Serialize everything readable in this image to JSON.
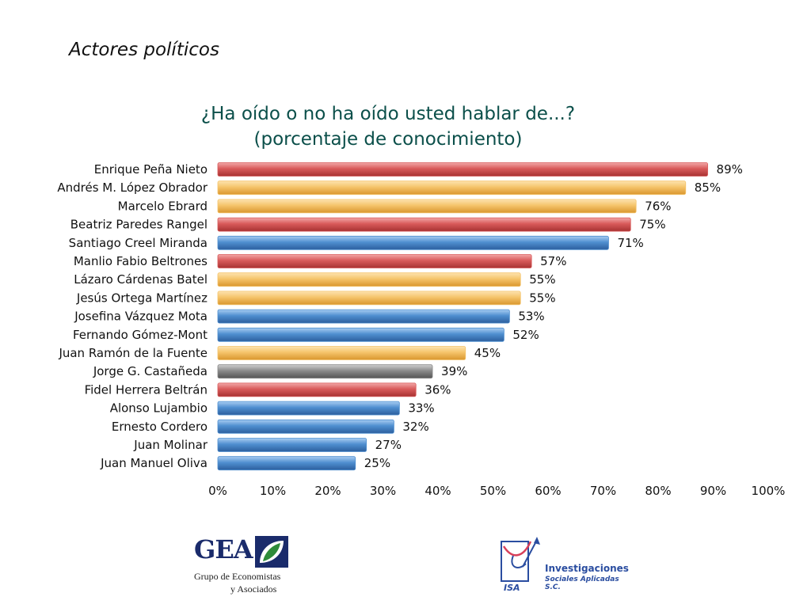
{
  "slide_title": "Actores políticos",
  "colors": {
    "pri": "#d85a5a",
    "prd": "#f5c46a",
    "pan": "#4f8fd0",
    "other": "#8a8a8a",
    "title": "#0b4f4a"
  },
  "chart_data": {
    "type": "bar",
    "orientation": "horizontal",
    "title": "¿Ha oído o no ha oído usted hablar de...?",
    "subtitle": "(porcentaje de conocimiento)",
    "categories": [
      "Enrique Peña Nieto",
      "Andrés M. López Obrador",
      "Marcelo Ebrard",
      "Beatriz Paredes Rangel",
      "Santiago Creel Miranda",
      "Manlio Fabio Beltrones",
      "Lázaro Cárdenas Batel",
      "Jesús Ortega Martínez",
      "Josefina Vázquez Mota",
      "Fernando Gómez-Mont",
      "Juan Ramón de la Fuente",
      "Jorge G. Castañeda",
      "Fidel Herrera Beltrán",
      "Alonso Lujambio",
      "Ernesto Cordero",
      "Juan Molinar",
      "Juan Manuel Oliva"
    ],
    "values": [
      89,
      85,
      76,
      75,
      71,
      57,
      55,
      55,
      53,
      52,
      45,
      39,
      36,
      33,
      32,
      27,
      25
    ],
    "value_labels": [
      "89%",
      "85%",
      "76%",
      "75%",
      "71%",
      "57%",
      "55%",
      "55%",
      "53%",
      "52%",
      "45%",
      "39%",
      "36%",
      "33%",
      "32%",
      "27%",
      "25%"
    ],
    "bar_colors": [
      "pri",
      "prd",
      "prd",
      "pri",
      "pan",
      "pri",
      "prd",
      "prd",
      "pan",
      "pan",
      "prd",
      "other",
      "pri",
      "pan",
      "pan",
      "pan",
      "pan"
    ],
    "xlim": [
      0,
      100
    ],
    "xticks": [
      "0%",
      "10%",
      "20%",
      "30%",
      "40%",
      "50%",
      "60%",
      "70%",
      "80%",
      "90%",
      "100%"
    ],
    "grid": false,
    "legend": "none"
  },
  "logos": {
    "gea": {
      "name": "GEA",
      "line1": "Grupo de Economistas",
      "line2": "y Asociados"
    },
    "isa": {
      "mark": "ISA",
      "line1": "Investigaciones",
      "line2": "Sociales Aplicadas S.C."
    }
  }
}
